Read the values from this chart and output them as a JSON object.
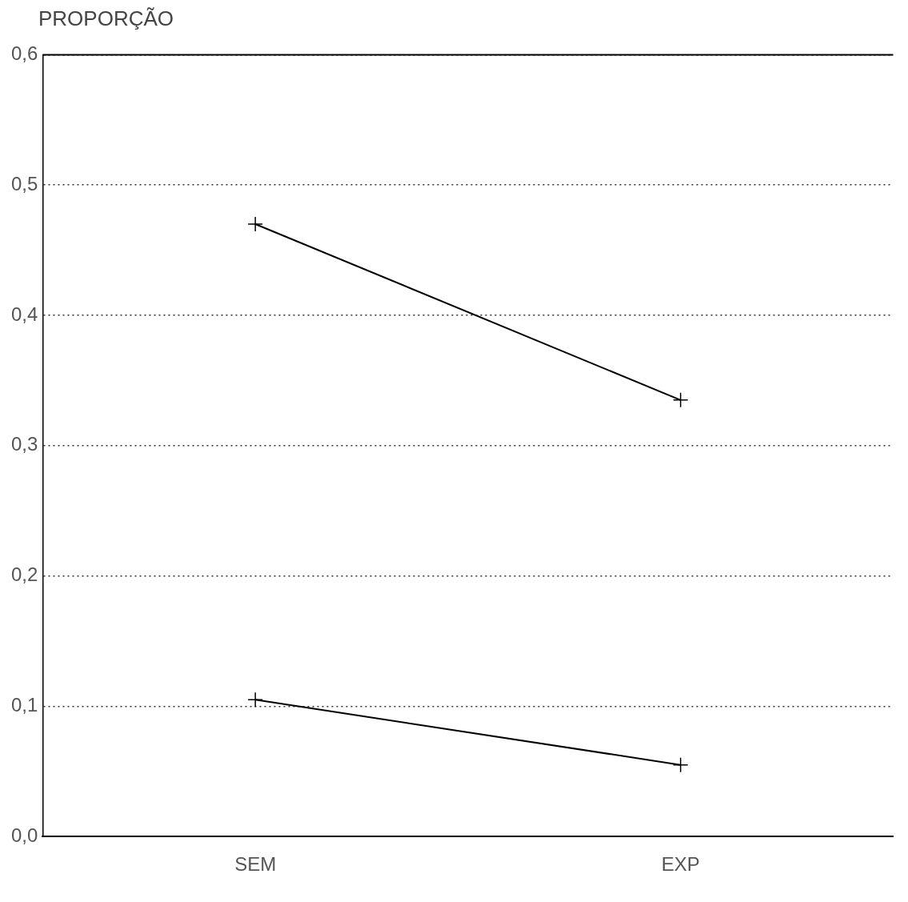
{
  "chart_data": {
    "type": "line",
    "ylabel": "PROPORÇÃO",
    "categories": [
      "SEM",
      "EXP"
    ],
    "series": [
      {
        "color": "#000000",
        "values": [
          0.47,
          0.335
        ],
        "marker": "cross"
      },
      {
        "color": "#000000",
        "values": [
          0.105,
          0.055
        ],
        "marker": "cross"
      }
    ],
    "ylim": [
      0,
      0.6
    ],
    "yticks": [
      {
        "value": 0,
        "label": "0,0"
      },
      {
        "value": 0.1,
        "label": "0,1"
      },
      {
        "value": 0.2,
        "label": "0,2"
      },
      {
        "value": 0.3,
        "label": "0,3"
      },
      {
        "value": 0.4,
        "label": "0,4"
      },
      {
        "value": 0.5,
        "label": "0,5"
      },
      {
        "value": 0.6,
        "label": "0,6"
      }
    ],
    "grid": "y",
    "legend": false,
    "line_style": "solid"
  }
}
